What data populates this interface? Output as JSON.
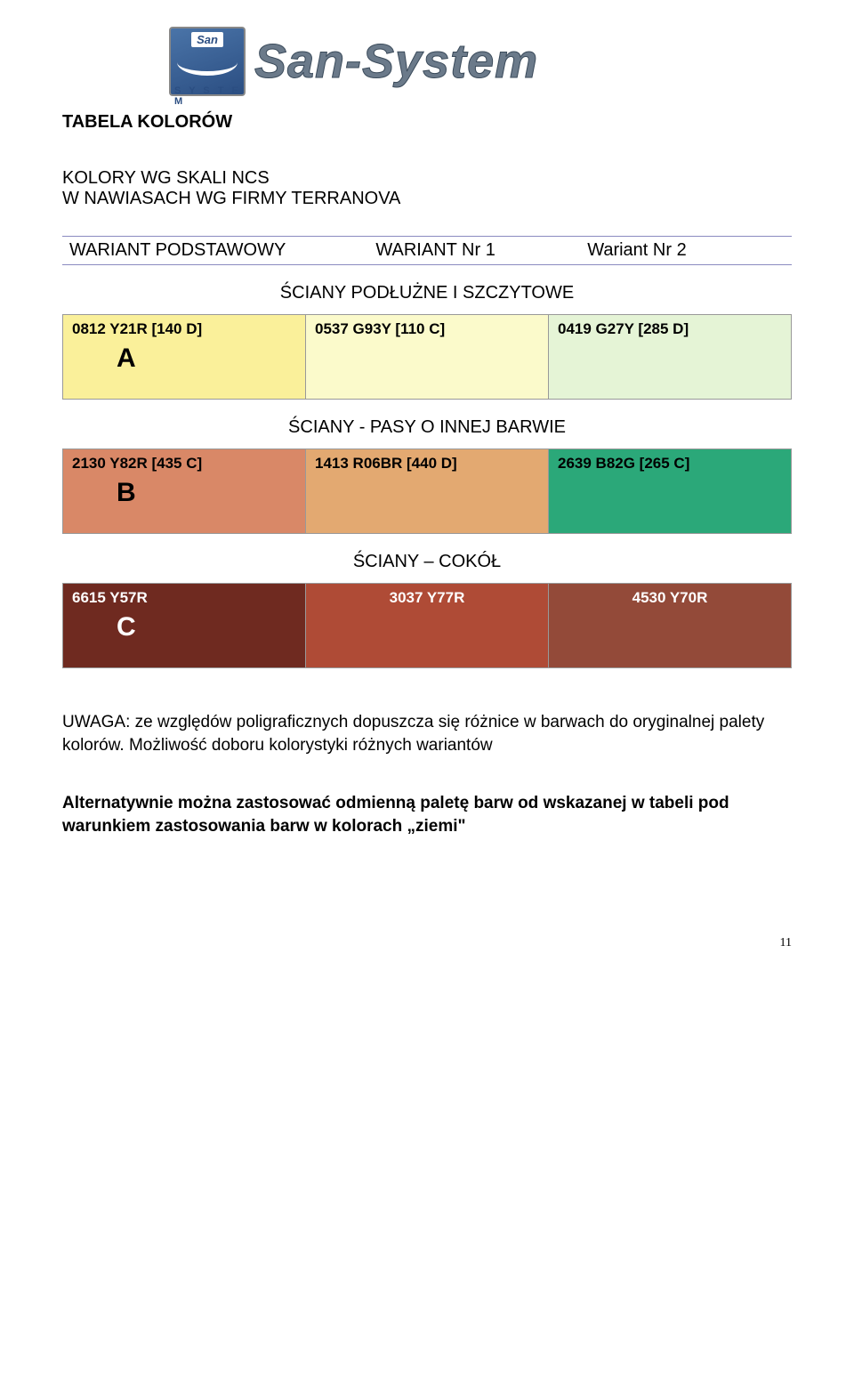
{
  "logo": {
    "badge_san": "San",
    "badge_system": "S Y S T E M",
    "brand": "San-System"
  },
  "title": "TABELA  KOLORÓW",
  "subtitle1": "KOLORY WG SKALI NCS",
  "subtitle2": "W NAWIASACH WG FIRMY TERRANOVA",
  "variant_headers": {
    "col1": "WARIANT PODSTAWOWY",
    "col2": "WARIANT Nr 1",
    "col3": "Wariant Nr 2"
  },
  "sections": [
    {
      "label": "ŚCIANY PODŁUŻNE I SZCZYTOWE",
      "letter": "A",
      "letter_color": "#000000",
      "code_color": "#000000",
      "cells": [
        {
          "code": "0812 Y21R [140 D]",
          "bg": "#faf09a"
        },
        {
          "code": "0537 G93Y [110 C]",
          "bg": "#fbfacb"
        },
        {
          "code": "0419 G27Y [285 D]",
          "bg": "#e5f4d6"
        }
      ]
    },
    {
      "label": "ŚCIANY - PASY O INNEJ BARWIE",
      "letter": "B",
      "letter_color": "#000000",
      "code_color": "#000000",
      "cells": [
        {
          "code": "2130 Y82R [435 C]",
          "bg": "#d98867"
        },
        {
          "code": "1413 R06BR [440 D]",
          "bg": "#e3a971"
        },
        {
          "code": "2639 B82G [265 C]",
          "bg": "#2ba879"
        }
      ]
    },
    {
      "label": "ŚCIANY – COKÓŁ",
      "letter": "C",
      "letter_color": "#ffffff",
      "code_color": "#ffffff",
      "cells": [
        {
          "code": "6615 Y57R",
          "bg": "#6f2a20"
        },
        {
          "code": "3037 Y77R",
          "bg": "#af4b36"
        },
        {
          "code": "4530 Y70R",
          "bg": "#934a39"
        }
      ]
    }
  ],
  "note": "UWAGA: ze względów poligraficznych dopuszcza się różnice w barwach do oryginalnej palety kolorów. Możliwość doboru kolorystyki różnych wariantów",
  "alt": "Alternatywnie można zastosować odmienną paletę barw od wskazanej w tabeli pod warunkiem zastosowania barw w kolorach „ziemi\"",
  "pagenum": "11",
  "row_border_color": "#999999"
}
